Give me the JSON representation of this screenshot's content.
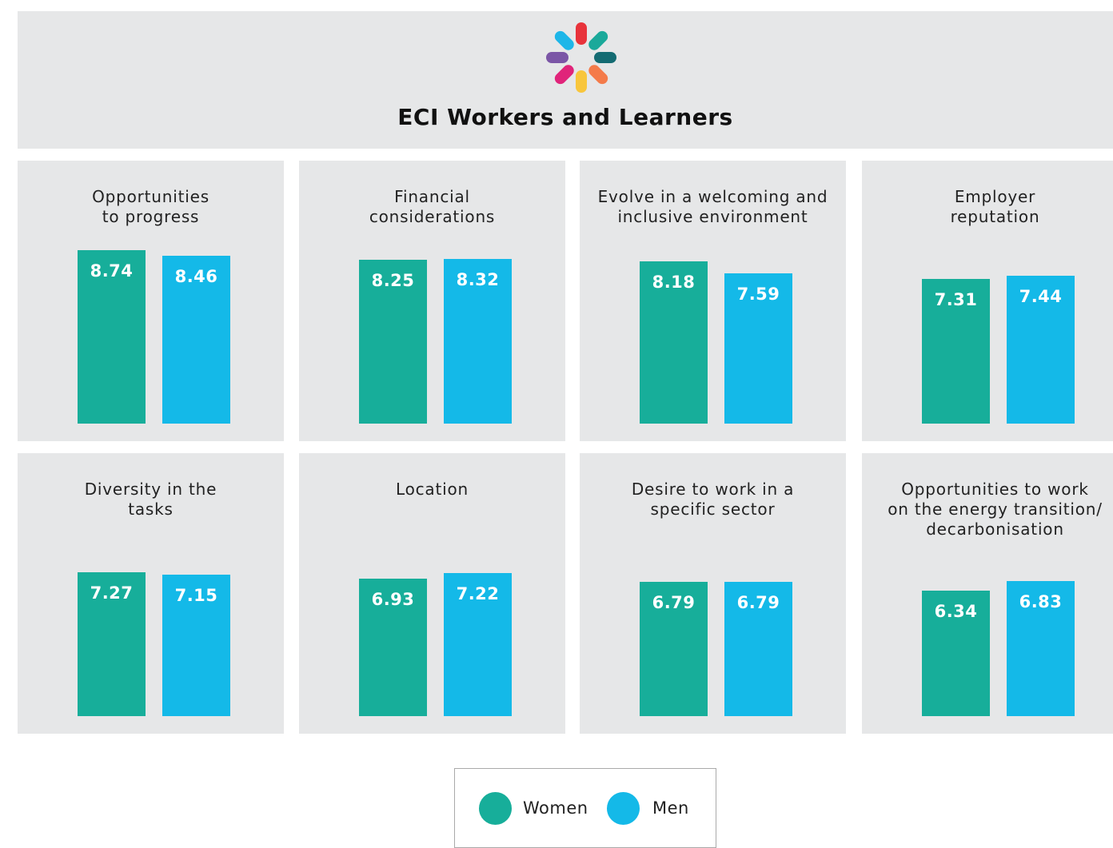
{
  "title": "ECI Workers and Learners",
  "chart_data": [
    {
      "type": "bar",
      "title": "Opportunities\nto progress",
      "series": [
        {
          "name": "Women",
          "color": "#17ae9a",
          "values": [
            8.74
          ]
        },
        {
          "name": "Men",
          "color": "#14b9e8",
          "values": [
            8.46
          ]
        }
      ]
    },
    {
      "type": "bar",
      "title": "Financial\nconsiderations",
      "series": [
        {
          "name": "Women",
          "color": "#17ae9a",
          "values": [
            8.25
          ]
        },
        {
          "name": "Men",
          "color": "#14b9e8",
          "values": [
            8.32
          ]
        }
      ]
    },
    {
      "type": "bar",
      "title": "Evolve in a welcoming and\ninclusive environment",
      "series": [
        {
          "name": "Women",
          "color": "#17ae9a",
          "values": [
            8.18
          ]
        },
        {
          "name": "Men",
          "color": "#14b9e8",
          "values": [
            7.59
          ]
        }
      ]
    },
    {
      "type": "bar",
      "title": "Employer\nreputation",
      "series": [
        {
          "name": "Women",
          "color": "#17ae9a",
          "values": [
            7.31
          ]
        },
        {
          "name": "Men",
          "color": "#14b9e8",
          "values": [
            7.44
          ]
        }
      ]
    },
    {
      "type": "bar",
      "title": "Diversity in the\ntasks",
      "series": [
        {
          "name": "Women",
          "color": "#17ae9a",
          "values": [
            7.27
          ]
        },
        {
          "name": "Men",
          "color": "#14b9e8",
          "values": [
            7.15
          ]
        }
      ]
    },
    {
      "type": "bar",
      "title": "Location",
      "series": [
        {
          "name": "Women",
          "color": "#17ae9a",
          "values": [
            6.93
          ]
        },
        {
          "name": "Men",
          "color": "#14b9e8",
          "values": [
            7.22
          ]
        }
      ]
    },
    {
      "type": "bar",
      "title": "Desire to work in a\nspecific sector",
      "series": [
        {
          "name": "Women",
          "color": "#17ae9a",
          "values": [
            6.79
          ]
        },
        {
          "name": "Men",
          "color": "#14b9e8",
          "values": [
            6.79
          ]
        }
      ]
    },
    {
      "type": "bar",
      "title": "Opportunities to work\non the energy transition/\ndecarbonisation",
      "series": [
        {
          "name": "Women",
          "color": "#17ae9a",
          "values": [
            6.34
          ]
        },
        {
          "name": "Men",
          "color": "#14b9e8",
          "values": [
            6.83
          ]
        }
      ]
    }
  ]
}
